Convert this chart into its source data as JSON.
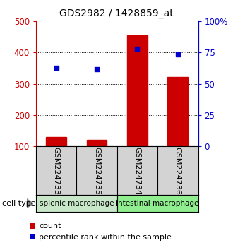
{
  "title": "GDS2982 / 1428859_at",
  "samples": [
    "GSM224733",
    "GSM224735",
    "GSM224734",
    "GSM224736"
  ],
  "counts": [
    130,
    120,
    455,
    322
  ],
  "percentiles": [
    62.5,
    61.5,
    78,
    73.5
  ],
  "ylim_left": [
    100,
    500
  ],
  "ylim_right": [
    0,
    100
  ],
  "yticks_left": [
    100,
    200,
    300,
    400,
    500
  ],
  "yticks_right": [
    0,
    25,
    50,
    75,
    100
  ],
  "ytick_labels_right": [
    "0",
    "25",
    "50",
    "75",
    "100%"
  ],
  "grid_lines": [
    200,
    300,
    400
  ],
  "cell_types": [
    {
      "label": "splenic macrophage",
      "samples": [
        0,
        1
      ],
      "color": "#c8e6c8"
    },
    {
      "label": "intestinal macrophage",
      "samples": [
        2,
        3
      ],
      "color": "#90ee90"
    }
  ],
  "bar_color": "#cc0000",
  "scatter_color": "#0000cc",
  "bar_width": 0.5,
  "left_axis_color": "#cc0000",
  "right_axis_color": "#0000cc",
  "title_fontsize": 10,
  "legend_items": [
    {
      "color": "#cc0000",
      "label": "count"
    },
    {
      "color": "#0000cc",
      "label": "percentile rank within the sample"
    }
  ],
  "cell_type_label": "cell type",
  "background_color": "#ffffff",
  "plot_bg_color": "#ffffff",
  "sample_box_color": "#d3d3d3"
}
